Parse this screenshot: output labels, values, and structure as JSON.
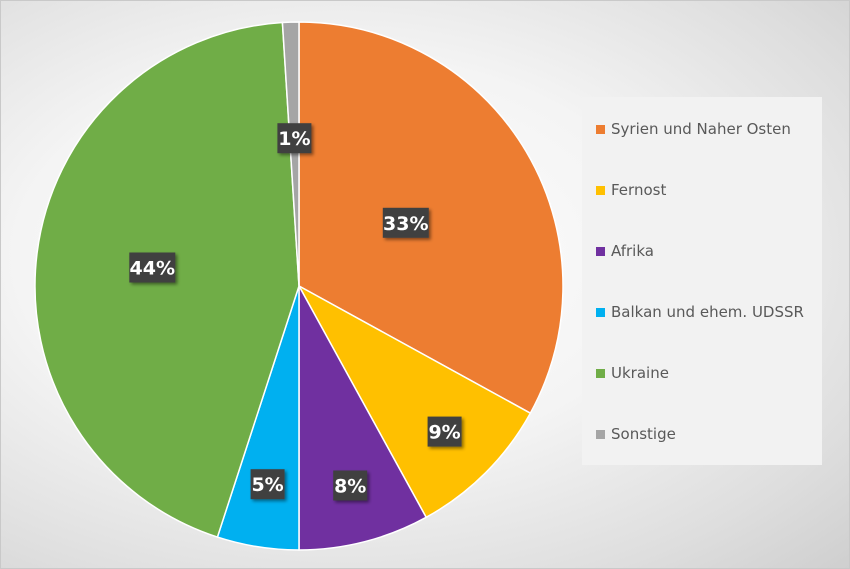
{
  "chart_data": {
    "type": "pie",
    "title": "",
    "legend_position": "right",
    "slices": [
      {
        "name": "Syrien und Naher Osten",
        "value": 33,
        "label": "33%",
        "color": "#ED7D31"
      },
      {
        "name": "Fernost",
        "value": 9,
        "label": "9%",
        "color": "#FFC000"
      },
      {
        "name": "Afrika",
        "value": 8,
        "label": "8%",
        "color": "#7030A0"
      },
      {
        "name": "Balkan und ehem. UDSSR",
        "value": 5,
        "label": "5%",
        "color": "#00B0F0"
      },
      {
        "name": "Ukraine",
        "value": 44,
        "label": "44%",
        "color": "#70AD47"
      },
      {
        "name": "Sonstige",
        "value": 1,
        "label": "1%",
        "color": "#A5A5A5"
      }
    ]
  }
}
